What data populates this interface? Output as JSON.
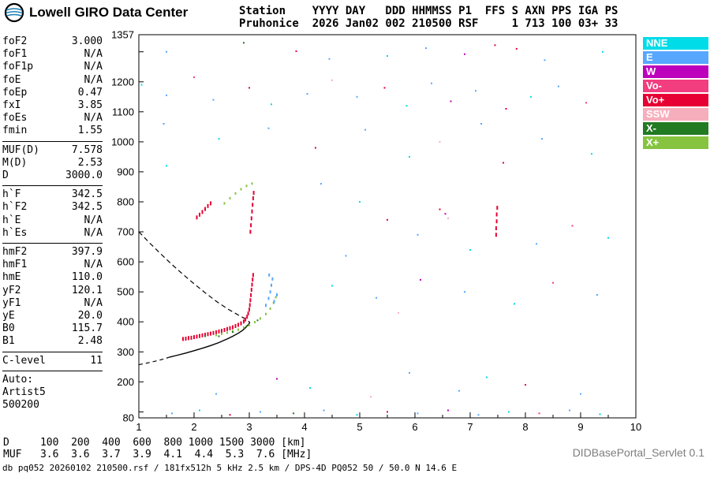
{
  "header": {
    "brand": "Lowell GIRO Data Center",
    "station_line1": "Station    YYYY DAY   DDD HHMMSS P1  FFS S AXN PPS IGA PS",
    "station_line2": "Pruhonice  2026 Jan02 002 210500 RSF     1 713 100 03+ 33"
  },
  "param_groups": [
    {
      "rows": [
        {
          "label": "foF2",
          "value": "3.000"
        },
        {
          "label": "foF1",
          "value": "N/A"
        },
        {
          "label": "foF1p",
          "value": "N/A"
        },
        {
          "label": "foE",
          "value": "N/A"
        },
        {
          "label": "foEp",
          "value": "0.47"
        },
        {
          "label": "fxI",
          "value": "3.85"
        },
        {
          "label": "foEs",
          "value": "N/A"
        },
        {
          "label": "fmin",
          "value": "1.55"
        }
      ]
    },
    {
      "rows": [
        {
          "label": "MUF(D)",
          "value": "7.578"
        },
        {
          "label": "M(D)",
          "value": "2.53"
        },
        {
          "label": "D",
          "value": "3000.0"
        }
      ]
    },
    {
      "rows": [
        {
          "label": "h`F",
          "value": "342.5"
        },
        {
          "label": "h`F2",
          "value": "342.5"
        },
        {
          "label": "h`E",
          "value": "N/A"
        },
        {
          "label": "h`Es",
          "value": "N/A"
        }
      ]
    },
    {
      "rows": [
        {
          "label": "hmF2",
          "value": "397.9"
        },
        {
          "label": "hmF1",
          "value": "N/A"
        },
        {
          "label": "hmE",
          "value": "110.0"
        },
        {
          "label": "yF2",
          "value": "120.1"
        },
        {
          "label": "yF1",
          "value": "N/A"
        },
        {
          "label": "yE",
          "value": "20.0"
        },
        {
          "label": "B0",
          "value": "115.7"
        },
        {
          "label": "B1",
          "value": "2.48"
        }
      ]
    },
    {
      "rows": [
        {
          "label": "C-level",
          "value": "11"
        }
      ]
    },
    {
      "rows": [
        {
          "label": "Auto:",
          "value": ""
        },
        {
          "label": "Artist5",
          "value": ""
        },
        {
          "label": "500200",
          "value": ""
        }
      ]
    }
  ],
  "legend": {
    "items": [
      {
        "label": "NNE",
        "color": "#00dce8"
      },
      {
        "label": "E",
        "color": "#57a7ff"
      },
      {
        "label": "W",
        "color": "#bc00bc"
      },
      {
        "label": "Vo-",
        "color": "#f23d7f"
      },
      {
        "label": "Vo+",
        "color": "#e60033"
      },
      {
        "label": "SSW",
        "color": "#f7aebc"
      },
      {
        "label": "X-",
        "color": "#227a22"
      },
      {
        "label": "X+",
        "color": "#86c440"
      }
    ]
  },
  "colors": {
    "NNE": "#00dce8",
    "E": "#57a7ff",
    "W": "#bc00bc",
    "Vo-": "#f23d7f",
    "Vo+": "#e60033",
    "SSW": "#f7aebc",
    "X-": "#227a22",
    "X+": "#86c440"
  },
  "bottom": {
    "d_row": "D     100  200  400  600  800 1000 1500 3000 [km]",
    "muf_row": "MUF   3.6  3.6  3.7  3.9  4.1  4.4  5.3  7.6 [MHz]",
    "servlet": "DIDBasePortal_Servlet 0.1",
    "footer": "db pq052 20260102 210500.rsf / 181fx512h 5 kHz 2.5 km / DPS-4D PQ052 50 / 50.0 N 14.6 E"
  },
  "chart_data": {
    "type": "scatter",
    "title": "Digisonde ionogram Pruhonice 2026-01-02 21:05:00",
    "xlabel": "[MHz]",
    "ylabel": "[km]",
    "xlim": [
      1,
      10
    ],
    "ylim": [
      80,
      1357
    ],
    "x_ticks": [
      1,
      2,
      3,
      4,
      5,
      6,
      7,
      8,
      9,
      10
    ],
    "y_tick_labels": [
      80,
      200,
      300,
      400,
      500,
      600,
      700,
      800,
      900,
      1000,
      1100,
      1200,
      1357
    ],
    "grid": false,
    "legend_position": "top-right",
    "profile_bottomside_solid": [
      [
        1.55,
        282
      ],
      [
        1.7,
        289
      ],
      [
        1.85,
        296
      ],
      [
        2.0,
        304
      ],
      [
        2.15,
        312
      ],
      [
        2.3,
        321
      ],
      [
        2.45,
        331
      ],
      [
        2.6,
        343
      ],
      [
        2.7,
        352
      ],
      [
        2.8,
        362
      ],
      [
        2.88,
        372
      ],
      [
        2.94,
        382
      ],
      [
        2.98,
        390
      ],
      [
        3.01,
        398
      ]
    ],
    "profile_topside_dashed": [
      [
        1.0,
        700
      ],
      [
        1.2,
        662
      ],
      [
        1.4,
        626
      ],
      [
        1.6,
        591
      ],
      [
        1.8,
        558
      ],
      [
        2.0,
        527
      ],
      [
        2.2,
        497
      ],
      [
        2.4,
        469
      ],
      [
        2.6,
        444
      ],
      [
        2.8,
        423
      ],
      [
        2.9,
        413
      ],
      [
        2.96,
        406
      ],
      [
        3.01,
        398
      ]
    ],
    "profile_lowfreq_dashed": [
      [
        1.0,
        257
      ],
      [
        1.15,
        263
      ],
      [
        1.3,
        269
      ],
      [
        1.45,
        276
      ],
      [
        1.55,
        282
      ]
    ],
    "traces": [
      {
        "name": "f-region-o-mode-trace",
        "color_key": "Vo+",
        "dot": [
          2,
          5
        ],
        "points": [
          [
            1.8,
            343
          ],
          [
            1.85,
            344
          ],
          [
            1.9,
            346
          ],
          [
            1.95,
            347
          ],
          [
            2.0,
            349
          ],
          [
            2.05,
            351
          ],
          [
            2.1,
            353
          ],
          [
            2.15,
            355
          ],
          [
            2.2,
            357
          ],
          [
            2.25,
            359
          ],
          [
            2.3,
            361
          ],
          [
            2.35,
            363
          ],
          [
            2.4,
            365
          ],
          [
            2.45,
            368
          ],
          [
            2.5,
            370
          ],
          [
            2.55,
            373
          ],
          [
            2.6,
            376
          ],
          [
            2.65,
            379
          ],
          [
            2.7,
            382
          ],
          [
            2.75,
            386
          ],
          [
            2.8,
            390
          ],
          [
            2.85,
            395
          ],
          [
            2.9,
            401
          ],
          [
            2.93,
            408
          ],
          [
            2.96,
            417
          ],
          [
            2.98,
            428
          ],
          [
            3.0,
            441
          ],
          [
            3.01,
            456
          ],
          [
            3.02,
            472
          ],
          [
            3.03,
            489
          ],
          [
            3.04,
            507
          ],
          [
            3.05,
            524
          ],
          [
            3.06,
            541
          ],
          [
            3.07,
            556
          ]
        ]
      },
      {
        "name": "o-mode-second-hop",
        "color_key": "Vo+",
        "dot": [
          2,
          5
        ],
        "points": [
          [
            2.05,
            748
          ],
          [
            2.1,
            757
          ],
          [
            2.15,
            766
          ],
          [
            2.2,
            776
          ],
          [
            2.25,
            786
          ],
          [
            2.3,
            795
          ]
        ]
      },
      {
        "name": "o-mode-cusp-second-order",
        "color_key": "Vo+",
        "dot": [
          2,
          5
        ],
        "points": [
          [
            3.02,
            700
          ],
          [
            3.03,
            722
          ],
          [
            3.04,
            745
          ],
          [
            3.05,
            768
          ],
          [
            3.06,
            790
          ],
          [
            3.07,
            812
          ],
          [
            3.08,
            830
          ]
        ]
      },
      {
        "name": "x-mode-trace",
        "color_key": "X+",
        "dot": [
          2,
          3
        ],
        "points": [
          [
            2.4,
            356
          ],
          [
            2.5,
            360
          ],
          [
            2.6,
            364
          ],
          [
            2.7,
            369
          ],
          [
            2.8,
            374
          ],
          [
            2.9,
            381
          ],
          [
            3.0,
            389
          ],
          [
            3.1,
            399
          ],
          [
            3.2,
            411
          ],
          [
            3.3,
            426
          ],
          [
            3.38,
            444
          ],
          [
            3.44,
            463
          ],
          [
            3.48,
            482
          ]
        ]
      },
      {
        "name": "x-mode-second-order-arc",
        "color_key": "X+",
        "dot": [
          2,
          3
        ],
        "points": [
          [
            2.55,
            795
          ],
          [
            2.65,
            812
          ],
          [
            2.75,
            828
          ],
          [
            2.85,
            842
          ],
          [
            2.95,
            853
          ],
          [
            3.05,
            861
          ]
        ]
      },
      {
        "name": "oblique-e-echo-cluster",
        "color_key": "E",
        "dot": [
          2,
          4
        ],
        "points": [
          [
            3.3,
            455
          ],
          [
            3.35,
            478
          ],
          [
            3.38,
            500
          ],
          [
            3.4,
            522
          ],
          [
            3.42,
            543
          ],
          [
            3.36,
            556
          ],
          [
            3.45,
            468
          ],
          [
            3.5,
            490
          ]
        ]
      },
      {
        "name": "x-minus-sprinkle",
        "color_key": "X-",
        "dot": [
          2,
          2
        ],
        "points": [
          [
            2.45,
            352
          ],
          [
            2.7,
            366
          ],
          [
            2.95,
            386
          ],
          [
            3.15,
            405
          ],
          [
            2.2,
            352
          ]
        ]
      },
      {
        "name": "rfi-burst",
        "color_key": "Vo+",
        "dot": [
          2,
          5
        ],
        "points": [
          [
            7.47,
            690
          ],
          [
            7.47,
            712
          ],
          [
            7.48,
            735
          ],
          [
            7.48,
            758
          ],
          [
            7.49,
            780
          ]
        ]
      }
    ],
    "noise_points": [
      [
        1.5,
        1300,
        "E"
      ],
      [
        3.85,
        1302,
        "Vo+"
      ],
      [
        5.5,
        1286,
        "NNE"
      ],
      [
        6.2,
        1312,
        "E"
      ],
      [
        6.9,
        1292,
        "W"
      ],
      [
        7.45,
        1322,
        "Vo+"
      ],
      [
        8.35,
        1272,
        "E"
      ],
      [
        9.4,
        1300,
        "NNE"
      ],
      [
        4.45,
        1276,
        "E"
      ],
      [
        2.9,
        1330,
        "X-"
      ],
      [
        1.05,
        1190,
        "NNE"
      ],
      [
        1.5,
        1155,
        "E"
      ],
      [
        2.0,
        1215,
        "Vo-"
      ],
      [
        2.35,
        1140,
        "E"
      ],
      [
        3.0,
        1180,
        "Vo+"
      ],
      [
        3.4,
        1125,
        "NNE"
      ],
      [
        4.05,
        1160,
        "E"
      ],
      [
        4.5,
        1205,
        "SSW"
      ],
      [
        4.95,
        1150,
        "E"
      ],
      [
        5.45,
        1180,
        "Vo+"
      ],
      [
        5.85,
        1120,
        "NNE"
      ],
      [
        6.3,
        1195,
        "E"
      ],
      [
        6.65,
        1135,
        "W"
      ],
      [
        7.1,
        1170,
        "E"
      ],
      [
        7.65,
        1110,
        "Vo+"
      ],
      [
        8.1,
        1150,
        "NNE"
      ],
      [
        8.6,
        1185,
        "E"
      ],
      [
        9.1,
        1130,
        "Vo-"
      ],
      [
        1.45,
        1060,
        "E"
      ],
      [
        2.45,
        1010,
        "NNE"
      ],
      [
        3.35,
        1045,
        "E"
      ],
      [
        4.2,
        980,
        "Vo+"
      ],
      [
        5.1,
        1040,
        "E"
      ],
      [
        5.9,
        950,
        "NNE"
      ],
      [
        6.45,
        1000,
        "SSW"
      ],
      [
        7.2,
        1060,
        "E"
      ],
      [
        7.6,
        930,
        "Vo+"
      ],
      [
        8.3,
        1010,
        "E"
      ],
      [
        9.2,
        960,
        "NNE"
      ],
      [
        1.5,
        920,
        "NNE"
      ],
      [
        4.3,
        860,
        "E"
      ],
      [
        5.0,
        800,
        "NNE"
      ],
      [
        5.5,
        740,
        "Vo+"
      ],
      [
        6.05,
        690,
        "E"
      ],
      [
        6.55,
        760,
        "W"
      ],
      [
        7.0,
        640,
        "NNE"
      ],
      [
        8.2,
        660,
        "E"
      ],
      [
        8.85,
        720,
        "Vo-"
      ],
      [
        9.5,
        680,
        "NNE"
      ],
      [
        4.75,
        620,
        "E"
      ],
      [
        6.45,
        775,
        "Vo+"
      ],
      [
        6.6,
        745,
        "SSW"
      ],
      [
        7.84,
        1310,
        "Vo+"
      ],
      [
        4.5,
        520,
        "NNE"
      ],
      [
        5.3,
        480,
        "E"
      ],
      [
        6.1,
        540,
        "W"
      ],
      [
        6.9,
        500,
        "E"
      ],
      [
        7.8,
        460,
        "NNE"
      ],
      [
        8.5,
        530,
        "Vo-"
      ],
      [
        9.3,
        490,
        "E"
      ],
      [
        5.7,
        430,
        "SSW"
      ],
      [
        1.6,
        95,
        "E"
      ],
      [
        2.1,
        105,
        "NNE"
      ],
      [
        2.65,
        90,
        "Vo+"
      ],
      [
        3.2,
        100,
        "E"
      ],
      [
        3.8,
        95,
        "X-"
      ],
      [
        4.35,
        105,
        "E"
      ],
      [
        4.95,
        90,
        "NNE"
      ],
      [
        5.5,
        100,
        "Vo+"
      ],
      [
        6.05,
        95,
        "E"
      ],
      [
        6.6,
        105,
        "W"
      ],
      [
        7.15,
        90,
        "E"
      ],
      [
        7.7,
        100,
        "NNE"
      ],
      [
        8.25,
        95,
        "Vo-"
      ],
      [
        8.8,
        105,
        "E"
      ],
      [
        9.35,
        92,
        "NNE"
      ],
      [
        2.4,
        160,
        "E"
      ],
      [
        4.1,
        180,
        "NNE"
      ],
      [
        5.2,
        150,
        "SSW"
      ],
      [
        6.8,
        170,
        "E"
      ],
      [
        8.0,
        190,
        "Vo+"
      ],
      [
        9.0,
        160,
        "E"
      ],
      [
        3.5,
        210,
        "W"
      ],
      [
        5.9,
        230,
        "E"
      ],
      [
        7.3,
        215,
        "NNE"
      ]
    ]
  }
}
